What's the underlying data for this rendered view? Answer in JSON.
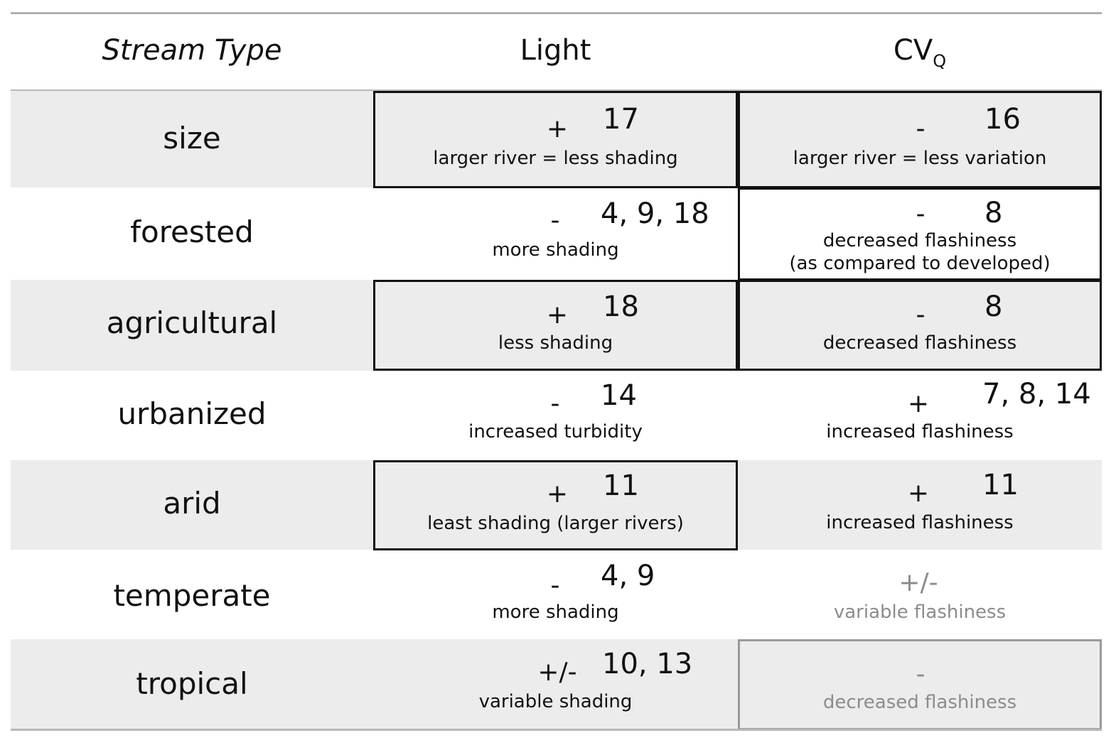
{
  "header": {
    "col1": "Stream Type",
    "col2": "Light",
    "col3_base": "CV",
    "col3_sub": "Q"
  },
  "rows": [
    {
      "label": "size",
      "light": {
        "sign": "+",
        "refs": "17",
        "note": "larger river = less shading"
      },
      "cv": {
        "sign": "-",
        "refs": "16",
        "note": "larger river = less variation"
      }
    },
    {
      "label": "forested",
      "light": {
        "sign": "-",
        "refs": "4, 9, 18",
        "note": "more shading"
      },
      "cv": {
        "sign": "-",
        "refs": "8",
        "note": "decreased flashiness",
        "note2": "(as compared to developed)"
      }
    },
    {
      "label": "agricultural",
      "light": {
        "sign": "+",
        "refs": "18",
        "note": "less shading"
      },
      "cv": {
        "sign": "-",
        "refs": "8",
        "note": "decreased flashiness"
      }
    },
    {
      "label": "urbanized",
      "light": {
        "sign": "-",
        "refs": "14",
        "note": "increased turbidity"
      },
      "cv": {
        "sign": "+",
        "refs": "7, 8, 14",
        "note": "increased flashiness"
      }
    },
    {
      "label": "arid",
      "light": {
        "sign": "+",
        "refs": "11",
        "note": "least shading (larger rivers)"
      },
      "cv": {
        "sign": "+",
        "refs": "11",
        "note": "increased flashiness"
      }
    },
    {
      "label": "temperate",
      "light": {
        "sign": "-",
        "refs": "4, 9",
        "note": "more shading"
      },
      "cv": {
        "sign": "+/-",
        "refs": "",
        "note": "variable flashiness"
      }
    },
    {
      "label": "tropical",
      "light": {
        "sign": "+/-",
        "refs": "10, 13",
        "note": "variable shading"
      },
      "cv": {
        "sign": "-",
        "refs": "",
        "note": "decreased flashiness"
      }
    }
  ],
  "colors": {
    "shaded_row": "#ececec",
    "muted_text": "#8c8c8c",
    "box_border": "#111111",
    "grey_box_border": "#9a9a9a"
  }
}
